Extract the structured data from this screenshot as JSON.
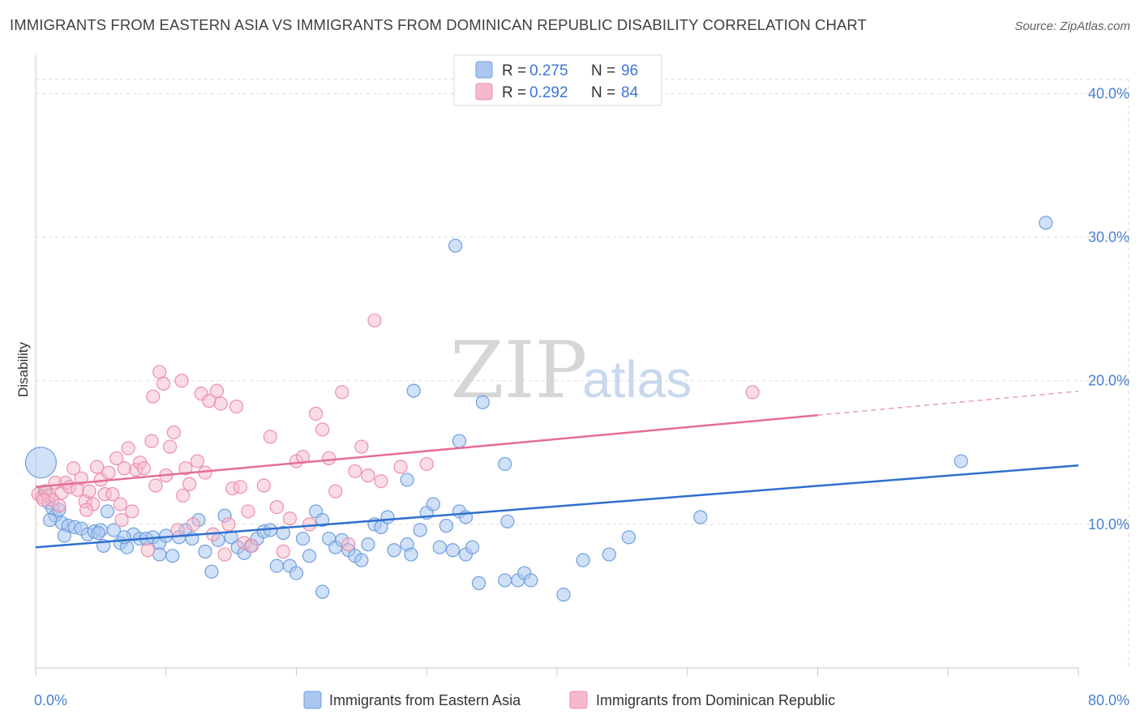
{
  "title": "IMMIGRANTS FROM EASTERN ASIA VS IMMIGRANTS FROM DOMINICAN REPUBLIC DISABILITY CORRELATION CHART",
  "source": "Source: ZipAtlas.com",
  "watermark": {
    "zip": "ZIP",
    "atlas": "atlas"
  },
  "legend": {
    "rows": [
      {
        "r_label": "R = ",
        "r_value": "0.275",
        "n_label": "N = ",
        "n_value": "96"
      },
      {
        "r_label": "R = ",
        "r_value": "0.292",
        "n_label": "N = ",
        "n_value": "84"
      }
    ]
  },
  "colors": {
    "blue_fill": "#a9c6ef",
    "blue_stroke": "#6f9fe0",
    "blue_line": "#2f6fcf",
    "pink_fill": "#f6b9cb",
    "pink_stroke": "#ec8fab",
    "pink_line": "#e56e95",
    "tick_label": "#4a7fd0",
    "grid": "#d9d9d9"
  },
  "chart_data": {
    "type": "scatter",
    "title": "IMMIGRANTS FROM EASTERN ASIA VS IMMIGRANTS FROM DOMINICAN REPUBLIC DISABILITY CORRELATION CHART",
    "xlabel": "",
    "ylabel": "Disability",
    "xlim": [
      0,
      80
    ],
    "ylim": [
      0,
      42
    ],
    "x_tick_labels": [
      "0.0%",
      "80.0%"
    ],
    "y_ticks": [
      10,
      20,
      30,
      40
    ],
    "y_tick_labels": [
      "10.0%",
      "20.0%",
      "30.0%",
      "40.0%"
    ],
    "grid": true,
    "legend_position": "top-center",
    "series": [
      {
        "name": "Immigrants from Eastern Asia",
        "color": "#a9c6ef",
        "trend": {
          "x": [
            0,
            80
          ],
          "y": [
            8.4,
            14.1
          ]
        },
        "points": [
          [
            0.4,
            14.3
          ],
          [
            0.7,
            12.3
          ],
          [
            1,
            11.5
          ],
          [
            1.3,
            11.1
          ],
          [
            1.5,
            10.6
          ],
          [
            1.8,
            11.0
          ],
          [
            2,
            10.1
          ],
          [
            2.5,
            9.9
          ],
          [
            3,
            9.8
          ],
          [
            3.5,
            9.7
          ],
          [
            4,
            9.3
          ],
          [
            4.5,
            9.5
          ],
          [
            5,
            9.6
          ],
          [
            5.5,
            10.9
          ],
          [
            6,
            9.6
          ],
          [
            6.5,
            8.7
          ],
          [
            7,
            8.4
          ],
          [
            7.5,
            9.3
          ],
          [
            8,
            9.0
          ],
          [
            8.5,
            9.0
          ],
          [
            9,
            9.1
          ],
          [
            9.5,
            8.7
          ],
          [
            10,
            9.2
          ],
          [
            10.5,
            7.8
          ],
          [
            11,
            9.1
          ],
          [
            11.5,
            9.6
          ],
          [
            12,
            9.0
          ],
          [
            12.5,
            10.3
          ],
          [
            13,
            8.1
          ],
          [
            13.5,
            6.7
          ],
          [
            14,
            8.9
          ],
          [
            14.5,
            10.6
          ],
          [
            15,
            9.1
          ],
          [
            15.5,
            8.4
          ],
          [
            16,
            8.0
          ],
          [
            16.5,
            8.5
          ],
          [
            17,
            9.0
          ],
          [
            17.5,
            9.5
          ],
          [
            18,
            9.6
          ],
          [
            18.5,
            7.1
          ],
          [
            19,
            9.4
          ],
          [
            19.5,
            7.1
          ],
          [
            20,
            6.6
          ],
          [
            20.5,
            9.0
          ],
          [
            21,
            7.8
          ],
          [
            21.5,
            10.9
          ],
          [
            22,
            10.3
          ],
          [
            22.5,
            9.0
          ],
          [
            23,
            8.4
          ],
          [
            23.5,
            8.9
          ],
          [
            24,
            8.2
          ],
          [
            24.5,
            7.8
          ],
          [
            25,
            7.5
          ],
          [
            25.5,
            8.6
          ],
          [
            26,
            10.0
          ],
          [
            26.5,
            9.8
          ],
          [
            27,
            10.5
          ],
          [
            27.5,
            8.2
          ],
          [
            28.5,
            13.1
          ],
          [
            28.5,
            8.6
          ],
          [
            28.8,
            7.9
          ],
          [
            29,
            19.3
          ],
          [
            29.5,
            9.6
          ],
          [
            30,
            10.8
          ],
          [
            30.5,
            11.4
          ],
          [
            31,
            8.4
          ],
          [
            31.5,
            9.9
          ],
          [
            32,
            8.2
          ],
          [
            32.5,
            10.9
          ],
          [
            33,
            7.9
          ],
          [
            32.2,
            29.4
          ],
          [
            32.5,
            15.8
          ],
          [
            33,
            10.5
          ],
          [
            33.5,
            8.4
          ],
          [
            34,
            5.9
          ],
          [
            34.3,
            18.5
          ],
          [
            36,
            14.2
          ],
          [
            36,
            6.1
          ],
          [
            37,
            6.1
          ],
          [
            37.5,
            6.6
          ],
          [
            38,
            6.1
          ],
          [
            40.5,
            5.1
          ],
          [
            36.2,
            10.2
          ],
          [
            42,
            7.5
          ],
          [
            44,
            7.9
          ],
          [
            45.5,
            9.1
          ],
          [
            51,
            10.5
          ],
          [
            22,
            5.3
          ],
          [
            71,
            14.4
          ],
          [
            77.5,
            31.0
          ],
          [
            2.2,
            9.2
          ],
          [
            5.2,
            8.5
          ],
          [
            9.5,
            7.9
          ],
          [
            4.8,
            9.4
          ],
          [
            1.1,
            10.3
          ],
          [
            6.8,
            9.1
          ]
        ]
      },
      {
        "name": "Immigrants from Dominican Republic",
        "color": "#f6b9cb",
        "trend": {
          "x": [
            0,
            60
          ],
          "y": [
            12.6,
            17.6
          ]
        },
        "points": [
          [
            0.2,
            12.1
          ],
          [
            0.5,
            11.9
          ],
          [
            0.8,
            12.3
          ],
          [
            1,
            12.0
          ],
          [
            1.3,
            11.7
          ],
          [
            1.5,
            12.9
          ],
          [
            1.8,
            11.3
          ],
          [
            2,
            12.2
          ],
          [
            2.3,
            12.9
          ],
          [
            2.6,
            12.6
          ],
          [
            2.9,
            13.9
          ],
          [
            3.2,
            12.4
          ],
          [
            3.5,
            13.2
          ],
          [
            3.8,
            11.6
          ],
          [
            4.1,
            12.3
          ],
          [
            4.4,
            11.4
          ],
          [
            4.7,
            14.0
          ],
          [
            5,
            13.1
          ],
          [
            5.3,
            12.1
          ],
          [
            5.6,
            13.6
          ],
          [
            5.9,
            12.1
          ],
          [
            6.2,
            14.6
          ],
          [
            6.5,
            11.4
          ],
          [
            6.8,
            13.9
          ],
          [
            7.1,
            15.3
          ],
          [
            7.4,
            10.9
          ],
          [
            7.7,
            13.8
          ],
          [
            8,
            14.3
          ],
          [
            8.3,
            13.9
          ],
          [
            8.6,
            8.2
          ],
          [
            8.9,
            15.8
          ],
          [
            9.2,
            12.7
          ],
          [
            9.5,
            20.6
          ],
          [
            9.8,
            19.8
          ],
          [
            10,
            13.4
          ],
          [
            10.3,
            15.4
          ],
          [
            10.6,
            16.4
          ],
          [
            10.9,
            9.6
          ],
          [
            11.2,
            20.0
          ],
          [
            11.5,
            13.9
          ],
          [
            11.8,
            12.8
          ],
          [
            12.1,
            10.0
          ],
          [
            12.4,
            14.4
          ],
          [
            12.7,
            19.1
          ],
          [
            13,
            13.6
          ],
          [
            13.3,
            18.6
          ],
          [
            13.6,
            9.3
          ],
          [
            13.9,
            19.3
          ],
          [
            14.2,
            18.4
          ],
          [
            14.5,
            7.9
          ],
          [
            14.8,
            10.0
          ],
          [
            15.1,
            12.5
          ],
          [
            15.4,
            18.2
          ],
          [
            15.7,
            12.6
          ],
          [
            16,
            8.7
          ],
          [
            16.3,
            10.9
          ],
          [
            16.6,
            8.5
          ],
          [
            17.5,
            12.7
          ],
          [
            18,
            16.1
          ],
          [
            18.5,
            11.2
          ],
          [
            19,
            8.1
          ],
          [
            19.5,
            10.4
          ],
          [
            20,
            14.4
          ],
          [
            20.5,
            14.7
          ],
          [
            21,
            10.0
          ],
          [
            21.5,
            17.7
          ],
          [
            22,
            16.6
          ],
          [
            22.5,
            14.6
          ],
          [
            23,
            12.3
          ],
          [
            23.5,
            19.2
          ],
          [
            24,
            8.6
          ],
          [
            24.5,
            13.7
          ],
          [
            25,
            15.4
          ],
          [
            25.5,
            13.4
          ],
          [
            26,
            24.2
          ],
          [
            26.5,
            13.0
          ],
          [
            28,
            14.0
          ],
          [
            30,
            14.2
          ],
          [
            55,
            19.2
          ],
          [
            9,
            18.9
          ],
          [
            3.9,
            11.0
          ],
          [
            6.6,
            10.3
          ],
          [
            11.3,
            12.0
          ],
          [
            0.6,
            11.7
          ]
        ]
      }
    ]
  },
  "bottom_legend": [
    {
      "label": "Immigrants from Eastern Asia"
    },
    {
      "label": "Immigrants from Dominican Republic"
    }
  ]
}
